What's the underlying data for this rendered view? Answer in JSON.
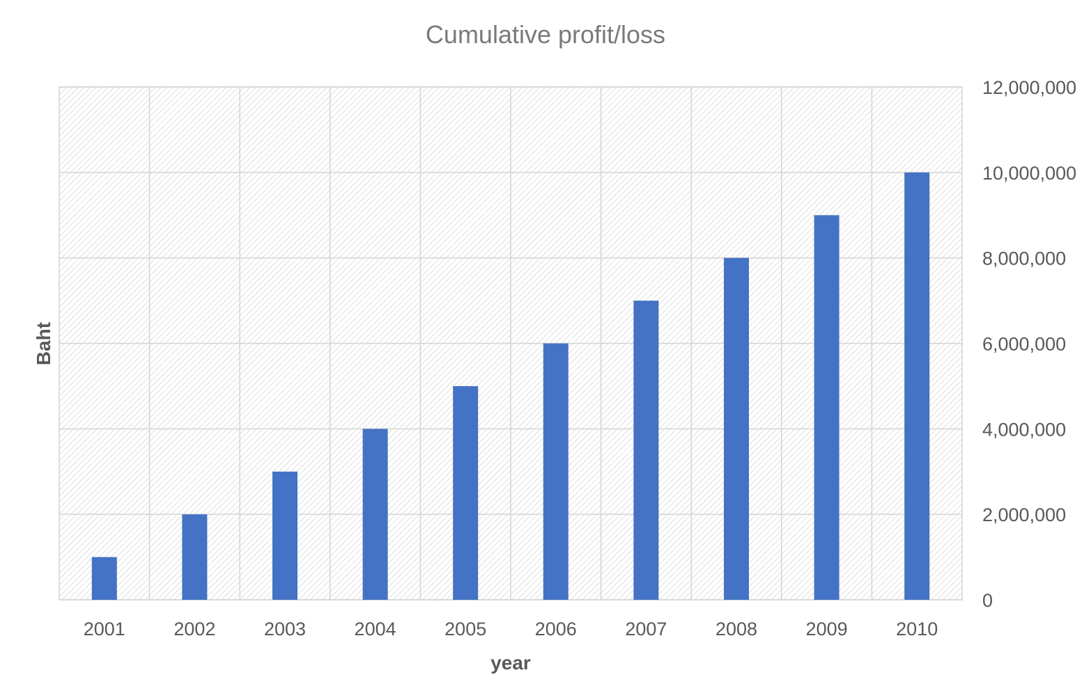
{
  "chart_data": {
    "type": "bar",
    "title": "Cumulative profit/loss",
    "xlabel": "year",
    "ylabel": "Baht",
    "categories": [
      "2001",
      "2002",
      "2003",
      "2004",
      "2005",
      "2006",
      "2007",
      "2008",
      "2009",
      "2010"
    ],
    "series": [
      {
        "values": [
          1000000,
          2000000,
          3000000,
          4000000,
          5000000,
          6000000,
          7000000,
          8000000,
          9000000,
          10000000
        ],
        "color": "#4472C4"
      }
    ],
    "ylim": [
      0,
      12000000
    ],
    "yticks": [
      0,
      2000000,
      4000000,
      6000000,
      8000000,
      10000000,
      12000000
    ],
    "ytick_labels": [
      "0",
      "2,000,000",
      "4,000,000",
      "6,000,000",
      "8,000,000",
      "10,000,000",
      "12,000,000"
    ],
    "y_axis_side": "right",
    "grid": true,
    "legend": "none"
  }
}
